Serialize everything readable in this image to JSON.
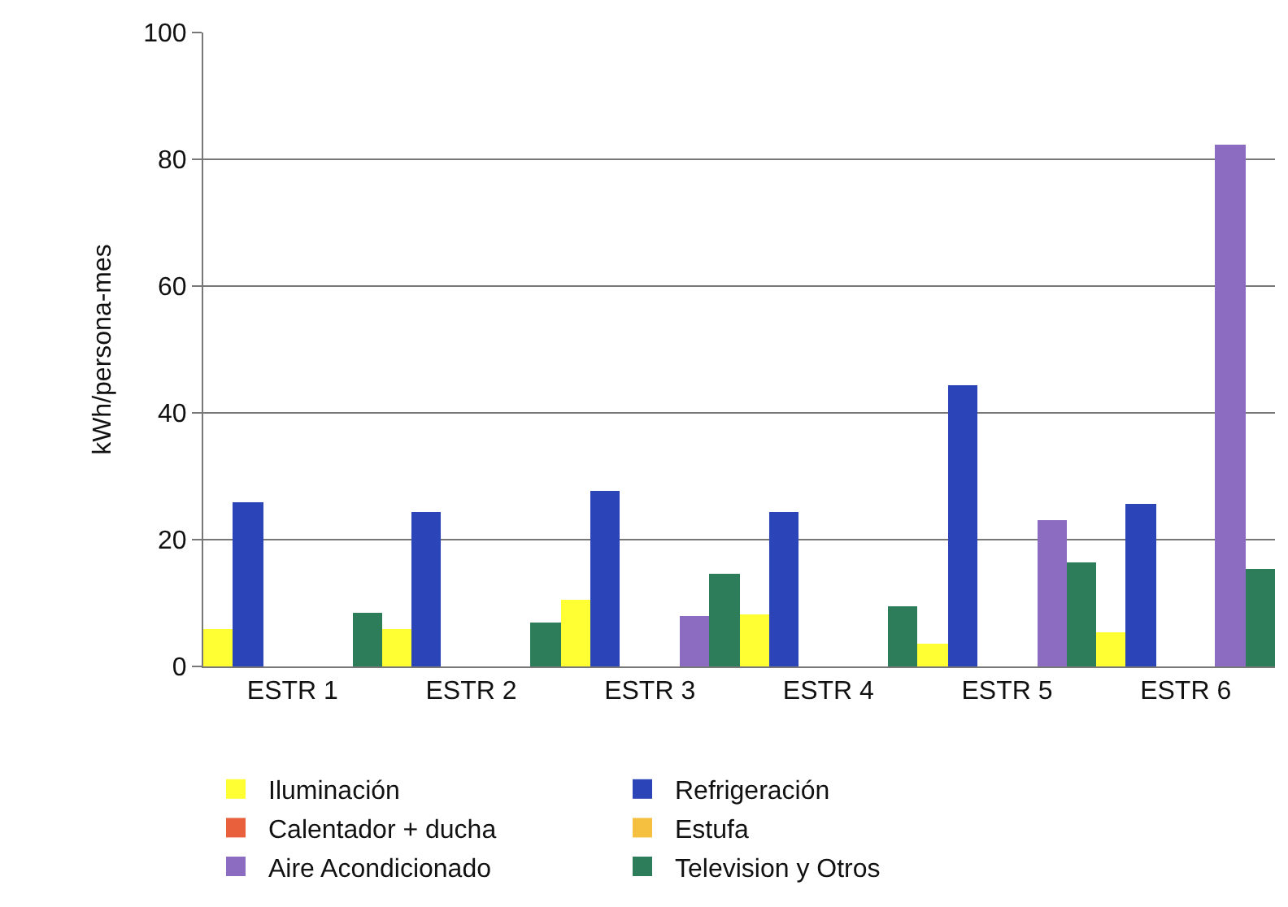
{
  "chart_data": {
    "type": "bar",
    "ylabel": "kWh/persona-mes",
    "categories": [
      "ESTR 1",
      "ESTR 2",
      "ESTR 3",
      "ESTR 4",
      "ESTR 5",
      "ESTR 6"
    ],
    "series": [
      {
        "name": "Iluminación",
        "color": "#ffff33",
        "values": [
          6,
          6,
          10.5,
          8.2,
          3.5,
          5.3
        ]
      },
      {
        "name": "Refrigeración",
        "color": "#2b45b8",
        "values": [
          26,
          24.3,
          27.8,
          24.3,
          44.3,
          25.6
        ]
      },
      {
        "name": "Calentador + ducha",
        "color": "#e8603c",
        "values": [
          0,
          0,
          0,
          0,
          0,
          0
        ]
      },
      {
        "name": "Estufa",
        "color": "#f5c040",
        "values": [
          0,
          0,
          0,
          0,
          0,
          0
        ]
      },
      {
        "name": "Aire Acondicionado",
        "color": "#8c6cc0",
        "values": [
          0,
          0,
          8,
          0,
          23.2,
          82.3
        ]
      },
      {
        "name": "Television y Otros",
        "color": "#2e7d5a",
        "values": [
          8.5,
          7,
          14.5,
          9.6,
          16.4,
          15.3
        ]
      }
    ],
    "ylim": [
      0,
      100
    ],
    "yticks": [
      0,
      20,
      40,
      60,
      80,
      100
    ],
    "grid": "y",
    "legend": "bottom"
  }
}
